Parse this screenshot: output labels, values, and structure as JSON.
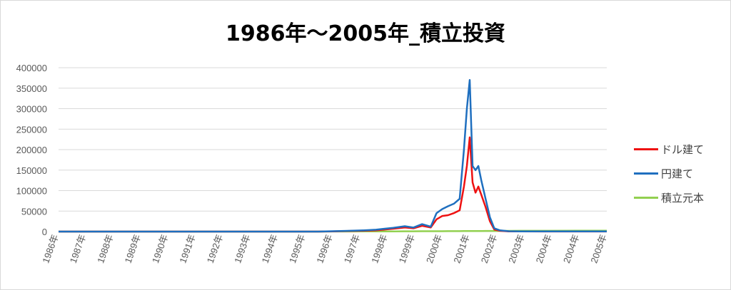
{
  "chart_data": {
    "type": "line",
    "title": "1986年～2005年_積立投資",
    "xlabel": "",
    "ylabel": "",
    "ylim": [
      0,
      400000
    ],
    "y_ticks": [
      "0",
      "50000",
      "100000",
      "150000",
      "200000",
      "250000",
      "300000",
      "350000",
      "400000"
    ],
    "x_tick_labels": [
      "1986年",
      "1987年",
      "1988年",
      "1989年",
      "1990年",
      "1991年",
      "1992年",
      "1993年",
      "1994年",
      "1995年",
      "1996年",
      "1997年",
      "1998年",
      "1999年",
      "2000年",
      "2001年",
      "2002年",
      "2003年",
      "2004年",
      "2004年",
      "2005年"
    ],
    "x": [
      1986.0,
      1995.0,
      1995.5,
      1996.0,
      1996.5,
      1997.0,
      1997.3,
      1997.6,
      1998.0,
      1998.3,
      1998.6,
      1998.9,
      1999.1,
      1999.3,
      1999.5,
      1999.7,
      1999.9,
      2000.05,
      2000.15,
      2000.25,
      2000.35,
      2000.45,
      2000.55,
      2000.65,
      2000.8,
      2000.95,
      2001.1,
      2001.3,
      2001.6,
      2002.0,
      2003.0,
      2004.0,
      2005.0
    ],
    "grid": true,
    "legend_position": "right",
    "series": [
      {
        "name": "ドル建て",
        "color": "#ee1111",
        "values": [
          0,
          0,
          500,
          1200,
          2000,
          3000,
          5000,
          7000,
          10000,
          8000,
          14000,
          10000,
          30000,
          38000,
          40000,
          45000,
          52000,
          110000,
          160000,
          230000,
          120000,
          95000,
          110000,
          90000,
          60000,
          25000,
          5000,
          2000,
          500,
          300,
          200,
          200,
          200
        ]
      },
      {
        "name": "円建て",
        "color": "#1f6fbf",
        "values": [
          0,
          0,
          800,
          1800,
          2800,
          4500,
          7000,
          9000,
          13000,
          10000,
          18000,
          12000,
          45000,
          55000,
          62000,
          68000,
          80000,
          200000,
          300000,
          370000,
          160000,
          150000,
          160000,
          125000,
          80000,
          35000,
          8000,
          3000,
          800,
          500,
          300,
          300,
          300
        ]
      },
      {
        "name": "積立元本",
        "color": "#92d050",
        "values": [
          0,
          0,
          100,
          200,
          300,
          400,
          500,
          600,
          700,
          750,
          800,
          850,
          900,
          950,
          1000,
          1050,
          1100,
          1150,
          1200,
          1250,
          1300,
          1350,
          1400,
          1450,
          1500,
          1550,
          1600,
          1700,
          1800,
          1900,
          2000,
          2100,
          2200
        ]
      }
    ]
  }
}
